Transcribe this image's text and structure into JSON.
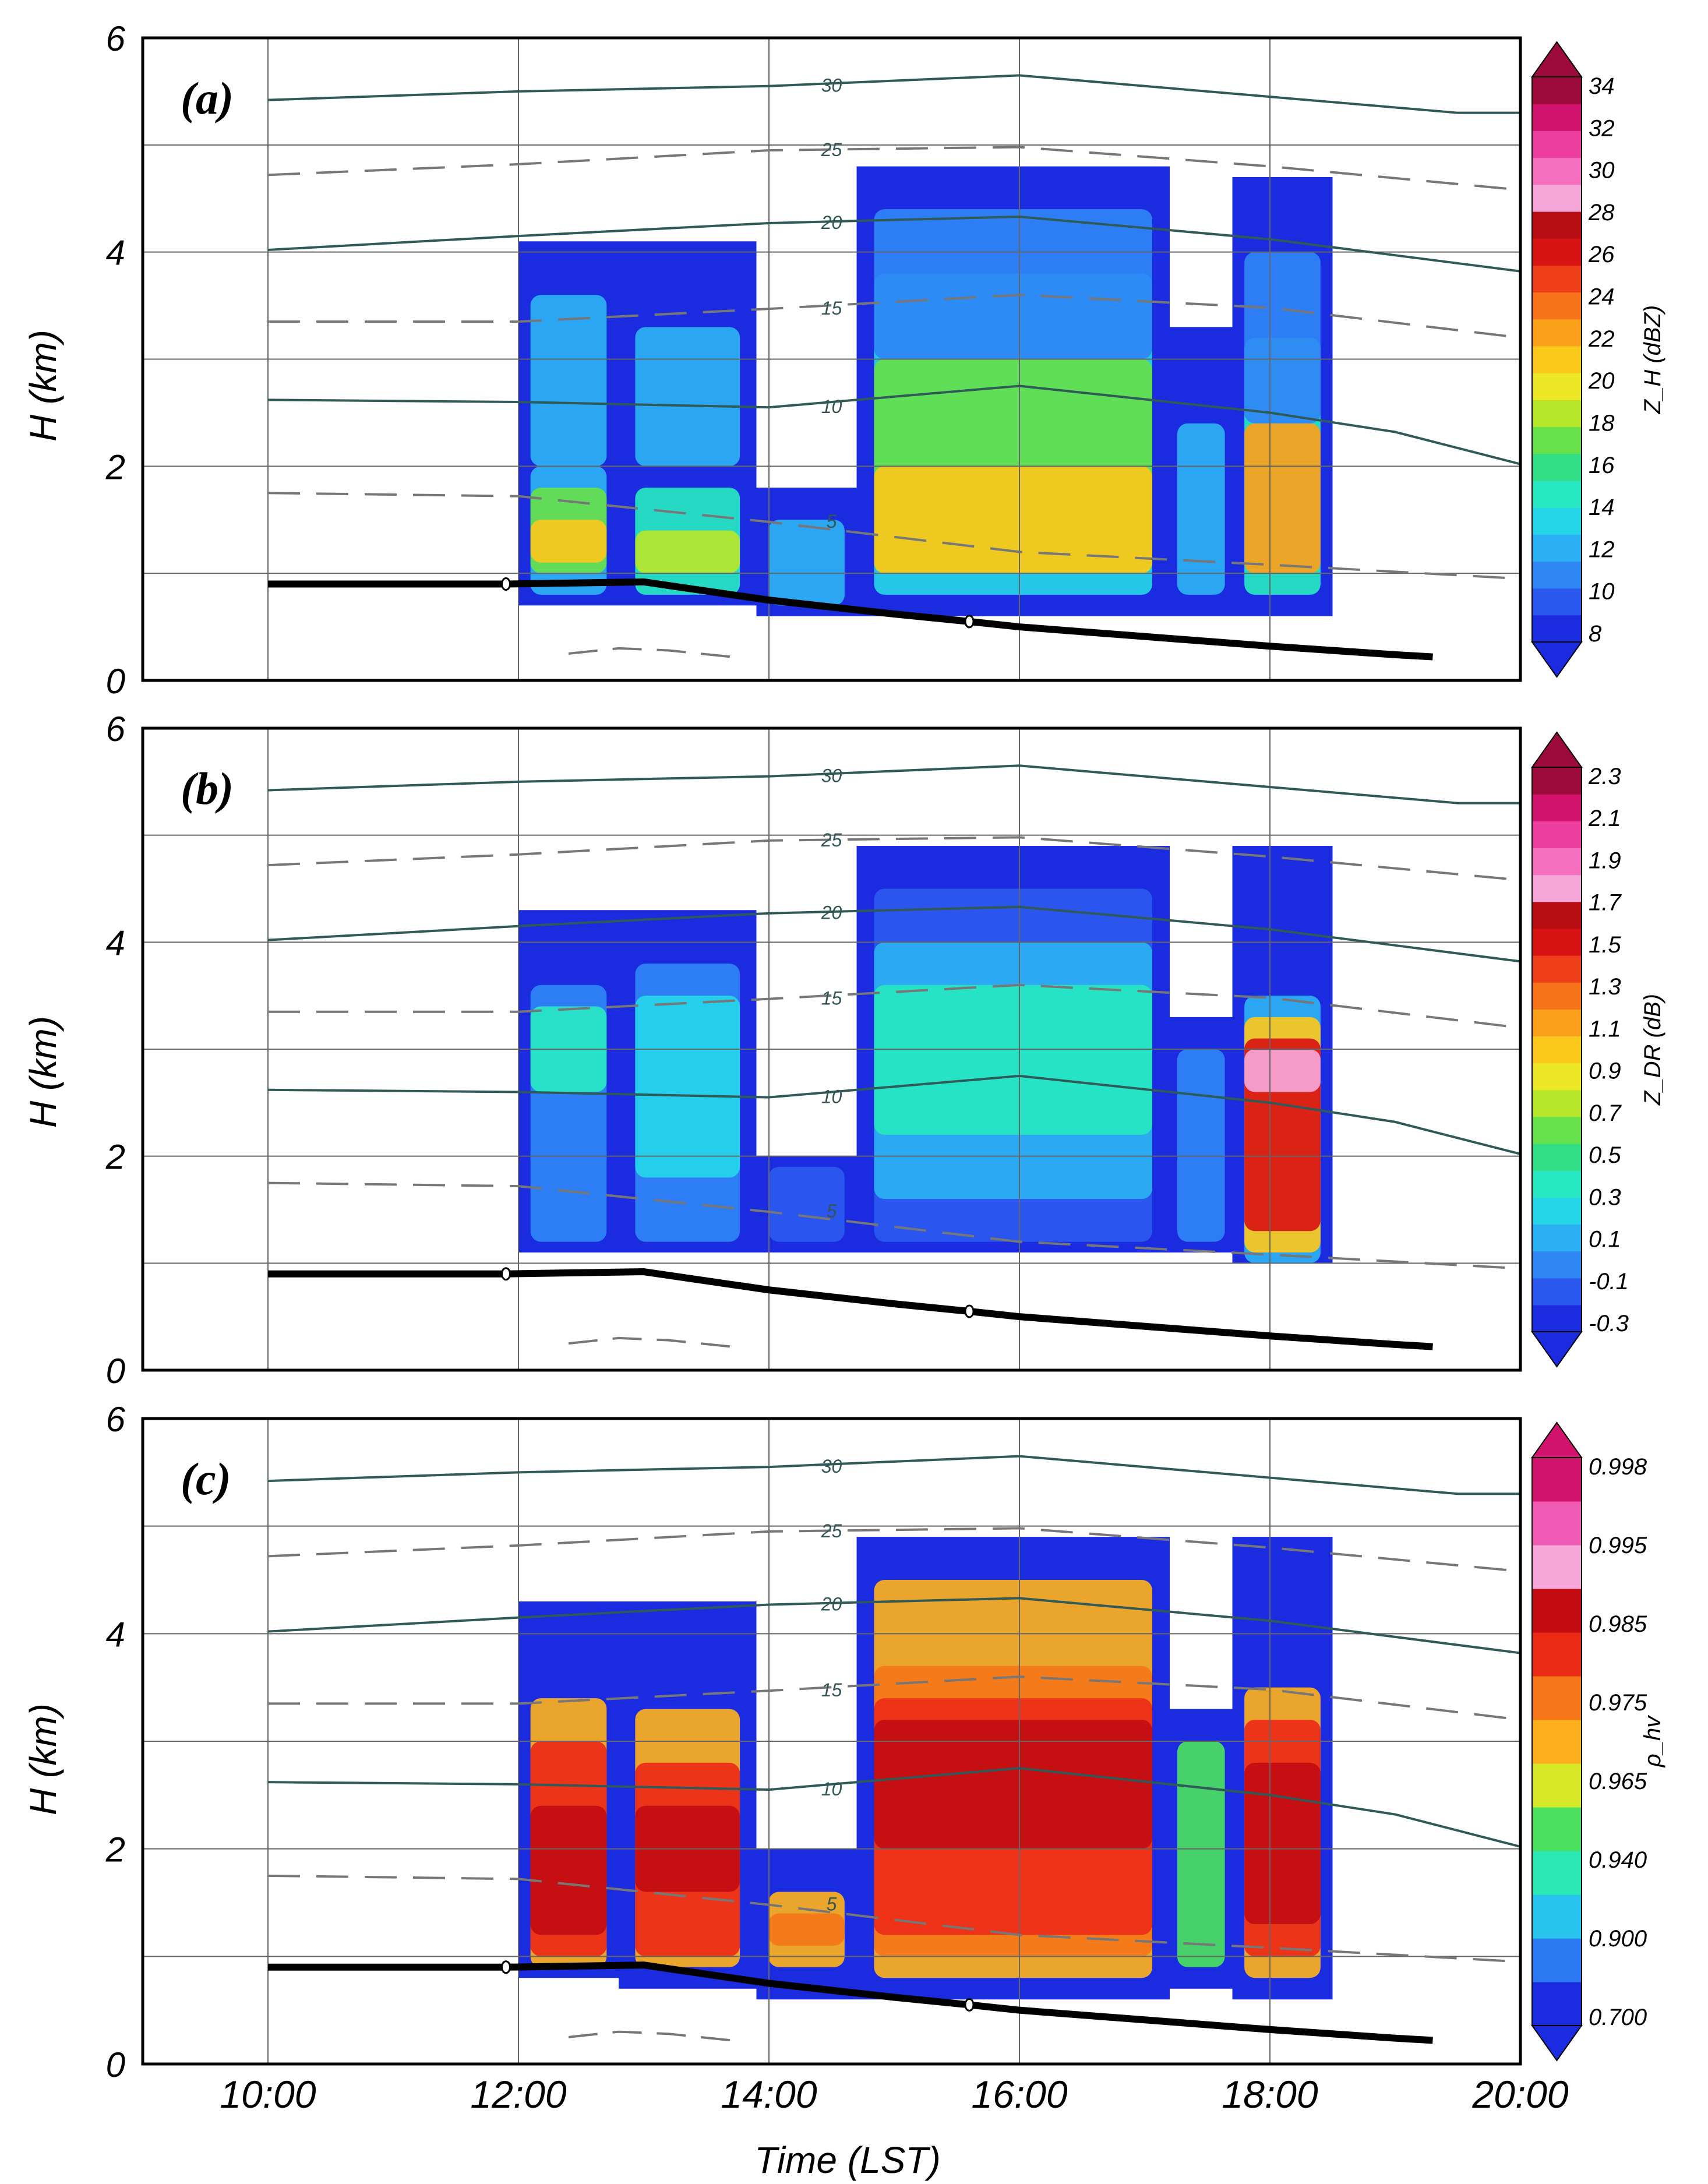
{
  "chart_data": {
    "type": "heatmap",
    "x_axis": {
      "title": "Time (LST)",
      "range_hours": [
        9,
        20
      ],
      "ticks": [
        10,
        12,
        14,
        16,
        18,
        20
      ],
      "tick_labels": [
        "10:00",
        "12:00",
        "14:00",
        "16:00",
        "18:00",
        "20:00"
      ]
    },
    "y_axis": {
      "title": "H (km)",
      "range": [
        0,
        6
      ],
      "ticks": [
        0,
        2,
        4,
        6
      ],
      "tick_labels": [
        "0",
        "2",
        "4",
        "6"
      ]
    },
    "overlays": {
      "temperature_contours": [
        {
          "label": "30",
          "style": "solid",
          "points": [
            [
              10,
              5.42
            ],
            [
              12,
              5.5
            ],
            [
              14,
              5.55
            ],
            [
              16,
              5.65
            ],
            [
              18,
              5.45
            ],
            [
              19.5,
              5.3
            ],
            [
              20,
              5.3
            ]
          ]
        },
        {
          "label": "25",
          "style": "dashed",
          "points": [
            [
              10,
              4.72
            ],
            [
              12,
              4.82
            ],
            [
              14,
              4.95
            ],
            [
              16,
              4.98
            ],
            [
              18,
              4.8
            ],
            [
              20,
              4.58
            ]
          ]
        },
        {
          "label": "20",
          "style": "solid",
          "points": [
            [
              10,
              4.02
            ],
            [
              12,
              4.15
            ],
            [
              14,
              4.27
            ],
            [
              16,
              4.33
            ],
            [
              18,
              4.12
            ],
            [
              20,
              3.82
            ]
          ]
        },
        {
          "label": "15",
          "style": "dashed",
          "points": [
            [
              10,
              3.35
            ],
            [
              12,
              3.35
            ],
            [
              14,
              3.47
            ],
            [
              16,
              3.6
            ],
            [
              18,
              3.48
            ],
            [
              20,
              3.2
            ]
          ]
        },
        {
          "label": "10",
          "style": "solid",
          "points": [
            [
              10,
              2.62
            ],
            [
              12,
              2.6
            ],
            [
              14,
              2.55
            ],
            [
              16,
              2.75
            ],
            [
              18,
              2.5
            ],
            [
              19,
              2.32
            ],
            [
              20,
              2.02
            ]
          ]
        },
        {
          "label": "5",
          "style": "dashed",
          "points": [
            [
              10,
              1.75
            ],
            [
              12,
              1.72
            ],
            [
              14,
              1.48
            ],
            [
              16,
              1.2
            ],
            [
              18,
              1.08
            ],
            [
              20,
              0.95
            ]
          ]
        }
      ],
      "thick_line": [
        [
          10,
          0.9
        ],
        [
          11.9,
          0.9
        ],
        [
          13,
          0.92
        ],
        [
          14,
          0.75
        ],
        [
          15,
          0.62
        ],
        [
          15.6,
          0.55
        ],
        [
          16,
          0.5
        ],
        [
          18,
          0.32
        ],
        [
          19,
          0.24
        ],
        [
          19.3,
          0.22
        ]
      ],
      "thick_line_markers": [
        [
          11.9,
          0.9
        ],
        [
          15.6,
          0.55
        ]
      ],
      "short_dashed_segment": [
        [
          12.4,
          0.25
        ],
        [
          12.8,
          0.3
        ],
        [
          13.2,
          0.28
        ],
        [
          13.7,
          0.22
        ]
      ]
    },
    "panels": [
      {
        "label": "(a)",
        "colorbar_title": "Z_H (dBZ)",
        "colorbar_ticks": [
          "34",
          "32",
          "30",
          "28",
          "26",
          "24",
          "22",
          "20",
          "18",
          "16",
          "14",
          "12",
          "10",
          "8"
        ],
        "colors": [
          "#1a2be0",
          "#2b59f0",
          "#2f86f5",
          "#2bb1f3",
          "#25d5e8",
          "#27e8c2",
          "#32df86",
          "#66e04b",
          "#b5e62a",
          "#ece825",
          "#fbc81c",
          "#fba01a",
          "#f7731a",
          "#ef3f1a",
          "#d81313",
          "#b90d14",
          "#f6a6d8",
          "#f571c0",
          "#ec3e9e",
          "#d2136d",
          "#9d0a3c"
        ],
        "cells": [
          {
            "t": [
              12.0,
              12.8
            ],
            "h": [
              0.7,
              4.1
            ],
            "levels": [
              [
                0.8,
                2.0,
                3
              ],
              [
                1.0,
                1.8,
                7
              ],
              [
                1.1,
                1.5,
                10
              ],
              [
                2.0,
                3.6,
                3
              ]
            ]
          },
          {
            "t": [
              12.8,
              13.9
            ],
            "h": [
              0.7,
              4.1
            ],
            "levels": [
              [
                0.8,
                1.8,
                5
              ],
              [
                1.0,
                1.4,
                8
              ],
              [
                2.0,
                3.3,
                3
              ]
            ]
          },
          {
            "t": [
              13.9,
              14.7
            ],
            "h": [
              0.6,
              1.8
            ],
            "levels": [
              [
                0.7,
                1.5,
                3
              ]
            ]
          },
          {
            "t": [
              14.7,
              17.2
            ],
            "h": [
              0.6,
              4.8
            ],
            "levels": [
              [
                0.8,
                3.8,
                4
              ],
              [
                1.0,
                3.0,
                7
              ],
              [
                1.0,
                2.0,
                10
              ],
              [
                3.0,
                4.4,
                2
              ]
            ]
          },
          {
            "t": [
              17.2,
              17.7
            ],
            "h": [
              0.6,
              3.3
            ],
            "levels": [
              [
                0.8,
                2.4,
                3
              ]
            ]
          },
          {
            "t": [
              17.7,
              18.5
            ],
            "h": [
              0.6,
              4.7
            ],
            "levels": [
              [
                0.8,
                3.2,
                5
              ],
              [
                1.0,
                2.4,
                11
              ],
              [
                2.4,
                4.0,
                2
              ]
            ]
          }
        ]
      },
      {
        "label": "(b)",
        "colorbar_title": "Z_DR (dB)",
        "colorbar_ticks": [
          "2.3",
          "2.1",
          "1.9",
          "1.7",
          "1.5",
          "1.3",
          "1.1",
          "0.9",
          "0.7",
          "0.5",
          "0.3",
          "0.1",
          "-0.1",
          "-0.3"
        ],
        "colors": [
          "#1a2be0",
          "#2b59f0",
          "#2f86f5",
          "#2bb1f3",
          "#25d5e8",
          "#27e8c2",
          "#32df86",
          "#66e04b",
          "#b5e62a",
          "#ece825",
          "#fbc81c",
          "#fba01a",
          "#f7731a",
          "#ef3f1a",
          "#d81313",
          "#b90d14",
          "#f6a6d8",
          "#f571c0",
          "#ec3e9e",
          "#d2136d",
          "#9d0a3c"
        ],
        "cells": [
          {
            "t": [
              12.0,
              12.8
            ],
            "h": [
              1.1,
              4.3
            ],
            "levels": [
              [
                1.2,
                3.6,
                2
              ],
              [
                2.6,
                3.4,
                5
              ]
            ]
          },
          {
            "t": [
              12.8,
              13.9
            ],
            "h": [
              1.1,
              4.3
            ],
            "levels": [
              [
                1.2,
                3.8,
                2
              ],
              [
                1.8,
                3.5,
                4
              ]
            ]
          },
          {
            "t": [
              13.9,
              14.7
            ],
            "h": [
              1.1,
              2.0
            ],
            "levels": [
              [
                1.2,
                1.9,
                1
              ]
            ]
          },
          {
            "t": [
              14.7,
              17.2
            ],
            "h": [
              1.1,
              4.9
            ],
            "levels": [
              [
                1.2,
                4.5,
                1
              ],
              [
                1.6,
                4.0,
                3
              ],
              [
                2.2,
                3.6,
                5
              ]
            ]
          },
          {
            "t": [
              17.2,
              17.7
            ],
            "h": [
              1.1,
              3.3
            ],
            "levels": [
              [
                1.2,
                3.0,
                2
              ]
            ]
          },
          {
            "t": [
              17.7,
              18.5
            ],
            "h": [
              1.0,
              4.9
            ],
            "levels": [
              [
                1.0,
                3.5,
                3
              ],
              [
                1.1,
                3.3,
                10
              ],
              [
                1.3,
                3.1,
                14
              ],
              [
                2.6,
                3.0,
                16
              ]
            ]
          }
        ]
      },
      {
        "label": "(c)",
        "colorbar_title": "ρ_hv",
        "colorbar_ticks": [
          "0.998",
          "0.995",
          "0.985",
          "0.975",
          "0.965",
          "0.940",
          "0.900",
          "0.700"
        ],
        "colors": [
          "#1a2be0",
          "#2b79f3",
          "#27c4ee",
          "#2be8b4",
          "#4be060",
          "#d7e828",
          "#fbb01c",
          "#f57619",
          "#ec2b17",
          "#c20c12",
          "#f6a6d8",
          "#ef5bb4",
          "#d2136d"
        ],
        "cells": [
          {
            "t": [
              12.0,
              12.8
            ],
            "h": [
              0.8,
              4.3
            ],
            "levels": [
              [
                0.9,
                3.4,
                6
              ],
              [
                1.0,
                3.0,
                8
              ],
              [
                1.2,
                2.4,
                9
              ]
            ]
          },
          {
            "t": [
              12.8,
              13.9
            ],
            "h": [
              0.7,
              4.3
            ],
            "levels": [
              [
                0.9,
                3.3,
                6
              ],
              [
                1.0,
                2.8,
                8
              ],
              [
                1.6,
                2.4,
                9
              ]
            ]
          },
          {
            "t": [
              13.9,
              14.7
            ],
            "h": [
              0.6,
              2.0
            ],
            "levels": [
              [
                0.9,
                1.6,
                6
              ],
              [
                1.1,
                1.4,
                7
              ]
            ]
          },
          {
            "t": [
              14.7,
              17.2
            ],
            "h": [
              0.6,
              4.9
            ],
            "levels": [
              [
                0.8,
                4.5,
                6
              ],
              [
                1.0,
                3.7,
                7
              ],
              [
                1.2,
                3.4,
                8
              ],
              [
                2.0,
                3.2,
                9
              ]
            ]
          },
          {
            "t": [
              17.2,
              17.7
            ],
            "h": [
              0.7,
              3.3
            ],
            "levels": [
              [
                0.9,
                3.0,
                4
              ]
            ]
          },
          {
            "t": [
              17.7,
              18.5
            ],
            "h": [
              0.6,
              4.9
            ],
            "levels": [
              [
                0.8,
                3.5,
                6
              ],
              [
                1.0,
                3.2,
                8
              ],
              [
                1.3,
                2.8,
                9
              ]
            ]
          }
        ]
      }
    ]
  }
}
